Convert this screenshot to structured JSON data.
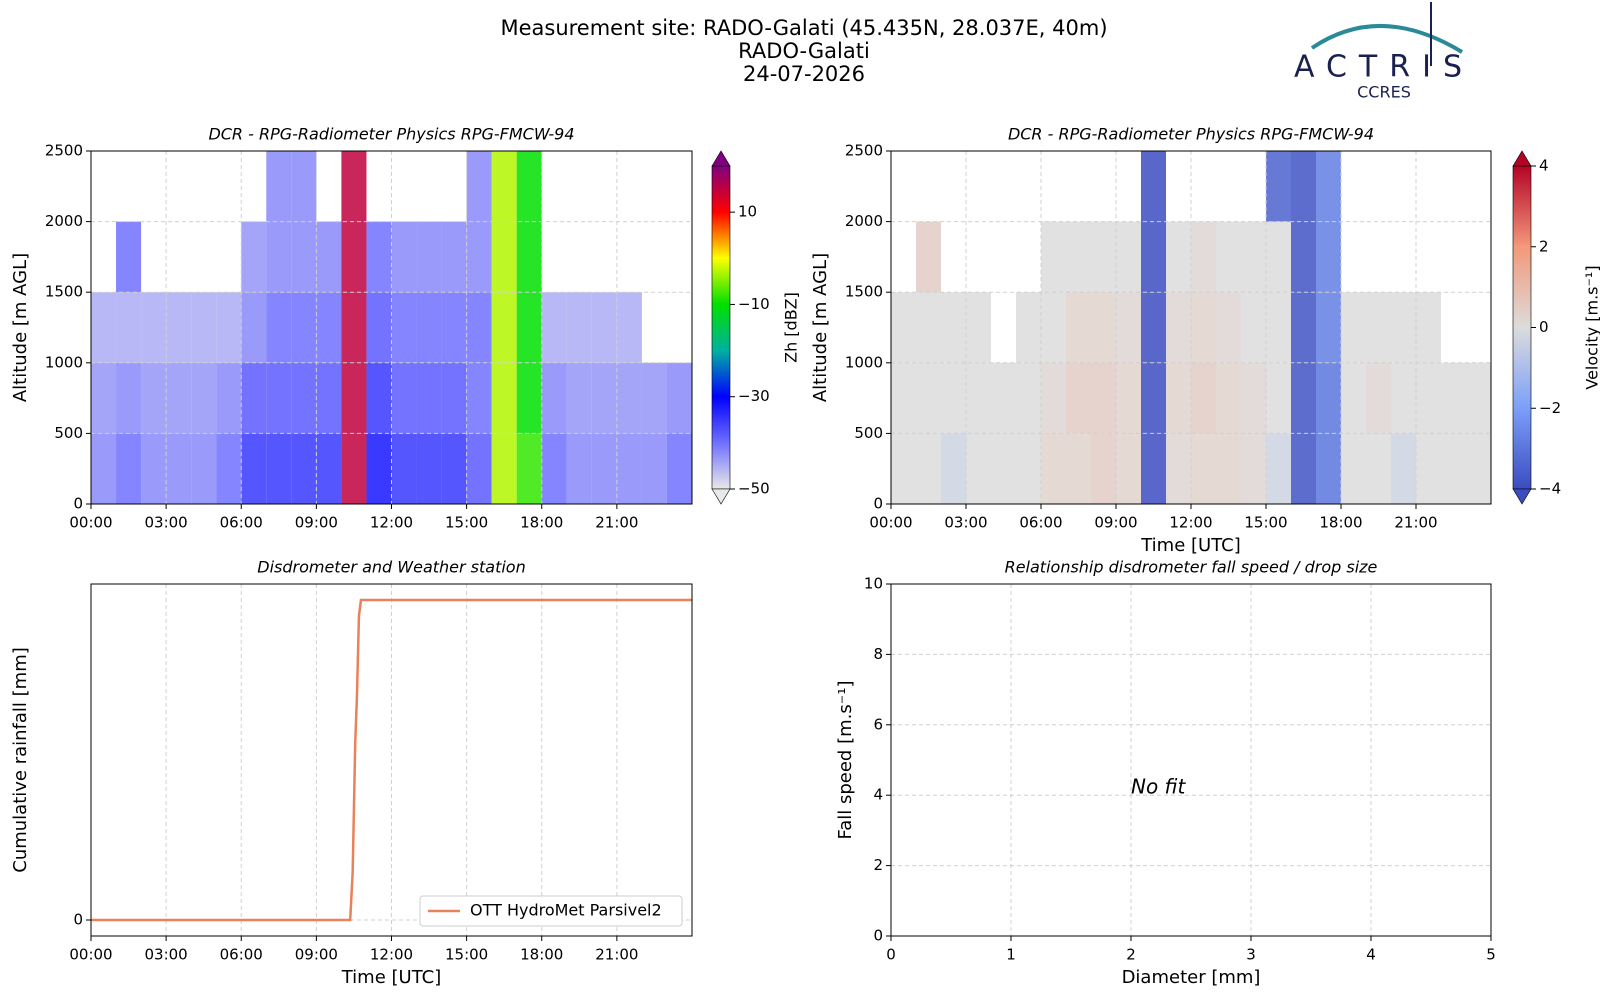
{
  "header": {
    "title": [
      "Measurement site: RADO-Galati (45.435N, 28.037E, 40m)",
      "RADO-Galati",
      "24-07-2026"
    ],
    "logo": "ACTRIS",
    "logo_subtitle": "CCRES"
  },
  "chart_data": [
    {
      "type": "heatmap",
      "title": "DCR - RPG-Radiometer Physics RPG-FMCW-94",
      "ylabel": "Altitude [m AGL]",
      "xlim": [
        0,
        24
      ],
      "xticks": [
        {
          "value": 0,
          "label": "00:00"
        },
        {
          "value": 3,
          "label": "03:00"
        },
        {
          "value": 6,
          "label": "06:00"
        },
        {
          "value": 9,
          "label": "09:00"
        },
        {
          "value": 12,
          "label": "12:00"
        },
        {
          "value": 15,
          "label": "15:00"
        },
        {
          "value": 18,
          "label": "18:00"
        },
        {
          "value": 21,
          "label": "21:00"
        }
      ],
      "ylim": [
        0,
        2500
      ],
      "yticks": [
        0,
        500,
        1000,
        1500,
        2000,
        2500
      ],
      "grid": true,
      "x": [
        0,
        1,
        2,
        3,
        4,
        5,
        6,
        7,
        8,
        9,
        10,
        11,
        12,
        13,
        14,
        15,
        16,
        17,
        18,
        19,
        20,
        21,
        22,
        23
      ],
      "y": [
        0,
        500,
        1000,
        1500,
        2000
      ],
      "z": [
        [
          -42,
          -40,
          -42,
          -42,
          -42,
          -40,
          -35,
          -35,
          -35,
          -35,
          15,
          -32,
          -35,
          -35,
          -35,
          -38,
          -3,
          -8,
          -40,
          -42,
          -42,
          -42,
          -42,
          -40
        ],
        [
          -43,
          -42,
          -43,
          -43,
          -43,
          -42,
          -38,
          -38,
          -38,
          -38,
          15,
          -35,
          -38,
          -38,
          -38,
          -40,
          -3,
          -10,
          -42,
          -43,
          -43,
          -43,
          -43,
          -42
        ],
        [
          -45,
          -45,
          -45,
          -45,
          -45,
          -45,
          -42,
          -40,
          -40,
          -40,
          15,
          -38,
          -40,
          -40,
          -40,
          -40,
          -3,
          -10,
          -45,
          -45,
          -45,
          -45,
          null,
          null
        ],
        [
          null,
          -40,
          null,
          null,
          null,
          null,
          -43,
          -42,
          -42,
          -42,
          15,
          -40,
          -42,
          -42,
          -42,
          -42,
          -3,
          -10,
          null,
          null,
          null,
          null,
          null,
          null
        ],
        [
          null,
          null,
          null,
          null,
          null,
          null,
          null,
          -42,
          -42,
          null,
          15,
          null,
          null,
          null,
          null,
          -42,
          -3,
          -10,
          null,
          null,
          null,
          null,
          null,
          null
        ]
      ],
      "clim": [
        -50,
        20
      ],
      "cticks": [
        {
          "value": -50,
          "label": "−50"
        },
        {
          "value": -30,
          "label": "−30"
        },
        {
          "value": -10,
          "label": "−10"
        },
        10
      ],
      "colorbar_label": "Zh [dBZ]",
      "colormap": [
        "#e8e8e8",
        "#7070ff",
        "#0000ff",
        "#00b0a0",
        "#00e000",
        "#ffff00",
        "#ff0000",
        "#800080"
      ]
    },
    {
      "type": "heatmap",
      "title": "DCR - RPG-Radiometer Physics RPG-FMCW-94",
      "xlabel": "Time [UTC]",
      "ylabel": "Altitude [m AGL]",
      "xlim": [
        0,
        24
      ],
      "xticks": [
        {
          "value": 0,
          "label": "00:00"
        },
        {
          "value": 3,
          "label": "03:00"
        },
        {
          "value": 6,
          "label": "06:00"
        },
        {
          "value": 9,
          "label": "09:00"
        },
        {
          "value": 12,
          "label": "12:00"
        },
        {
          "value": 15,
          "label": "15:00"
        },
        {
          "value": 18,
          "label": "18:00"
        },
        {
          "value": 21,
          "label": "21:00"
        }
      ],
      "ylim": [
        0,
        2500
      ],
      "yticks": [
        0,
        500,
        1000,
        1500,
        2000,
        2500
      ],
      "grid": true,
      "x": [
        0,
        1,
        2,
        3,
        4,
        5,
        6,
        7,
        8,
        9,
        10,
        11,
        12,
        13,
        14,
        15,
        16,
        17,
        18,
        19,
        20,
        21,
        22,
        23
      ],
      "y": [
        0,
        500,
        1000,
        1500,
        2000
      ],
      "z": [
        [
          0,
          0,
          -0.3,
          0,
          0,
          0,
          0.3,
          0.3,
          0.5,
          0.3,
          -4,
          0.2,
          0.3,
          0.3,
          0.2,
          -0.3,
          -3.8,
          -3,
          0,
          0,
          -0.3,
          0,
          0,
          0
        ],
        [
          0,
          0,
          0,
          0,
          0,
          0,
          0.2,
          0.5,
          0.5,
          0.3,
          -4,
          0.3,
          0.5,
          0.3,
          0.2,
          0,
          -3.8,
          -3,
          0,
          0.2,
          0,
          0,
          0,
          0
        ],
        [
          0,
          0,
          0,
          0,
          null,
          0,
          0,
          0.3,
          0.3,
          0.2,
          -4,
          0.2,
          0.3,
          0.2,
          0,
          0,
          -3.8,
          -2.8,
          0,
          0,
          0,
          0,
          null,
          null
        ],
        [
          null,
          0.5,
          null,
          null,
          null,
          null,
          0,
          0,
          0,
          0,
          -4,
          0,
          0.2,
          0,
          0,
          0,
          -3.8,
          -2.8,
          null,
          null,
          null,
          null,
          null,
          null
        ],
        [
          null,
          null,
          null,
          null,
          null,
          null,
          null,
          null,
          null,
          null,
          -4,
          null,
          null,
          null,
          null,
          -3.5,
          -3.8,
          -2.8,
          null,
          null,
          null,
          null,
          null,
          null
        ]
      ],
      "clim": [
        -4,
        4
      ],
      "cticks": [
        {
          "value": -4,
          "label": "−4"
        },
        {
          "value": -2,
          "label": "−2"
        },
        0,
        2,
        4
      ],
      "colorbar_label": "Velocity [m.s⁻¹]",
      "colormap": [
        "#3b4cc0",
        "#7b9ff9",
        "#dcdcdc",
        "#f4987a",
        "#b40426"
      ]
    },
    {
      "type": "line",
      "title": "Disdrometer and Weather station",
      "xlabel": "Time [UTC]",
      "ylabel": "Cumulative rainfall [mm]",
      "xlim": [
        0,
        24
      ],
      "xticks": [
        {
          "value": 0,
          "label": "00:00"
        },
        {
          "value": 3,
          "label": "03:00"
        },
        {
          "value": 6,
          "label": "06:00"
        },
        {
          "value": 9,
          "label": "09:00"
        },
        {
          "value": 12,
          "label": "12:00"
        },
        {
          "value": 15,
          "label": "15:00"
        },
        {
          "value": 18,
          "label": "18:00"
        },
        {
          "value": 21,
          "label": "21:00"
        }
      ],
      "ylim": [
        -0.5,
        10.5
      ],
      "yticks": [
        0
      ],
      "grid": true,
      "legend": "lower right",
      "series": [
        {
          "name": "OTT HydroMet Parsivel2",
          "color": "#e8825a",
          "x": [
            0,
            10.35,
            10.45,
            10.55,
            10.62,
            10.7,
            10.78,
            24
          ],
          "y": [
            0,
            0,
            1.5,
            5.5,
            7,
            9.5,
            10,
            10
          ]
        }
      ]
    },
    {
      "type": "scatter",
      "title": "Relationship disdrometer fall speed / drop size",
      "xlabel": "Diameter [mm]",
      "ylabel": "Fall speed [m.s⁻¹]",
      "xlim": [
        0,
        5
      ],
      "xticks": [
        0,
        1,
        2,
        3,
        4,
        5
      ],
      "ylim": [
        0,
        10
      ],
      "yticks": [
        0,
        2,
        4,
        6,
        8,
        10
      ],
      "grid": true,
      "annotation": "No fit"
    }
  ]
}
